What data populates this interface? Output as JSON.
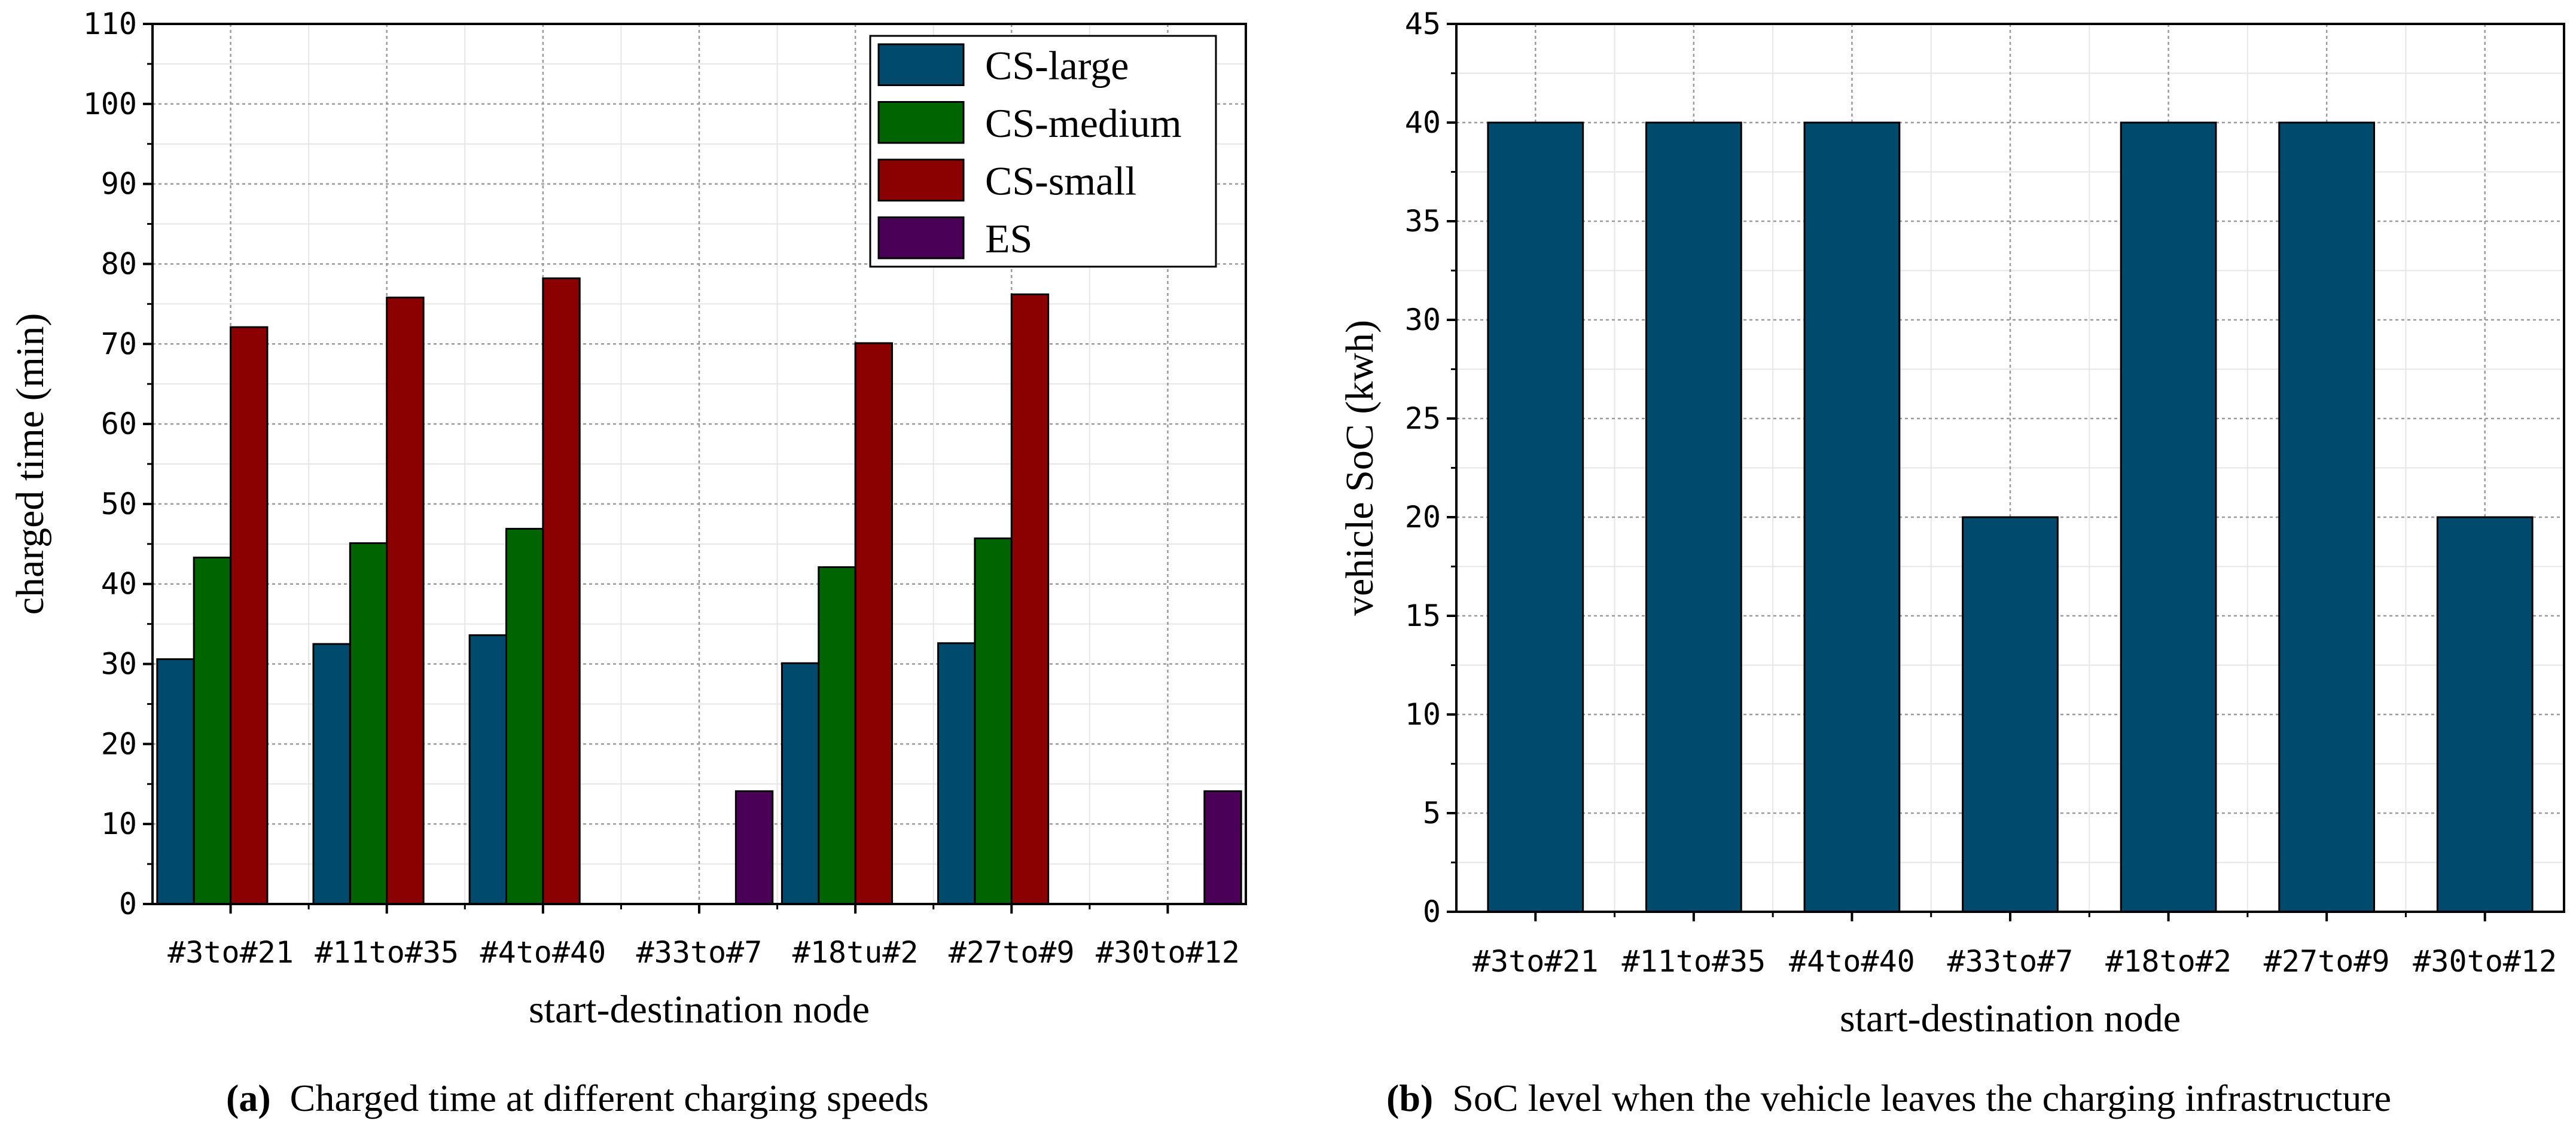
{
  "chart_data": [
    {
      "id": "a",
      "type": "bar",
      "categories": [
        "#3to#21",
        "#11to#35",
        "#4to#40",
        "#33to#7",
        "#18tu#2",
        "#27to#9",
        "#30to#12"
      ],
      "series": [
        {
          "name": "CS-large",
          "color": "#004a6e",
          "values": [
            30.6,
            32.5,
            33.6,
            0,
            30.1,
            32.6,
            0
          ]
        },
        {
          "name": "CS-medium",
          "color": "#006400",
          "values": [
            43.3,
            45.1,
            46.9,
            0,
            42.1,
            45.7,
            0
          ]
        },
        {
          "name": "CS-small",
          "color": "#8b0000",
          "values": [
            72.1,
            75.8,
            78.2,
            0,
            70.1,
            76.2,
            0
          ]
        },
        {
          "name": "ES",
          "color": "#4b0058",
          "values": [
            0,
            0,
            0,
            14.1,
            0,
            0,
            14.1
          ]
        }
      ],
      "xlabel": "start-destination node",
      "ylabel": "charged time (min)",
      "ylim": [
        0,
        110
      ],
      "yticks": [
        "0",
        "10",
        "20",
        "30",
        "40",
        "50",
        "60",
        "70",
        "80",
        "90",
        "100",
        "110"
      ],
      "grid": true,
      "legend": "top-right"
    },
    {
      "id": "b",
      "type": "bar",
      "categories": [
        "#3to#21",
        "#11to#35",
        "#4to#40",
        "#33to#7",
        "#18to#2",
        "#27to#9",
        "#30to#12"
      ],
      "series": [
        {
          "name": "vehicle SoC",
          "color": "#004a6e",
          "values": [
            40,
            40,
            40,
            20,
            40,
            40,
            20
          ]
        }
      ],
      "xlabel": "start-destination node",
      "ylabel": "vehicle SoC (kwh)",
      "ylim": [
        0,
        45
      ],
      "yticks": [
        "0",
        "5",
        "10",
        "15",
        "20",
        "25",
        "30",
        "35",
        "40",
        "45"
      ],
      "grid": true
    }
  ],
  "captions": {
    "a": {
      "letter": "(a)",
      "text": "Charged time at different charging speeds"
    },
    "b": {
      "letter": "(b)",
      "text": "SoC level when the vehicle leaves the charging infrastructure"
    }
  }
}
